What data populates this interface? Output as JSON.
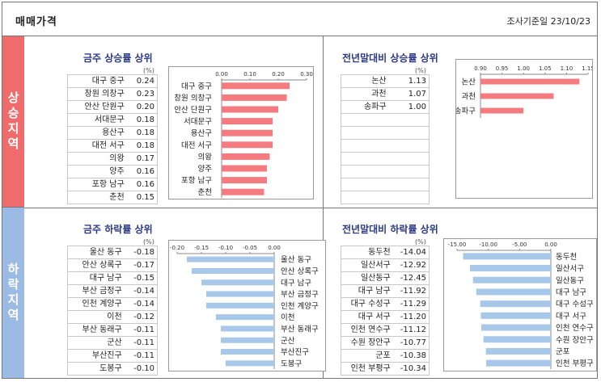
{
  "header": {
    "title": "매매가격",
    "survey_date": "조사기준일 23/10/23"
  },
  "sections": {
    "rise": "상승지역",
    "fall": "하락지역"
  },
  "unit_label": "(%)",
  "chart_data": [
    {
      "type": "bar",
      "title": "금주 상승률 상위",
      "categories": [
        "대구 중구",
        "창원 의창구",
        "안산 단원구",
        "서대문구",
        "용산구",
        "대전 서구",
        "의왕",
        "양주",
        "포항 남구",
        "춘천"
      ],
      "values": [
        0.24,
        0.23,
        0.2,
        0.18,
        0.18,
        0.18,
        0.17,
        0.16,
        0.16,
        0.15
      ],
      "value_labels": [
        "0.24",
        "0.23",
        "0.20",
        "0.18",
        "0.18",
        "0.18",
        "0.17",
        "0.16",
        "0.16",
        "0.15"
      ],
      "xlim": [
        0,
        0.3
      ],
      "ticks": [
        0,
        0.1,
        0.2,
        0.3
      ],
      "tick_labels": [
        "0.00",
        "0.10",
        "0.20",
        "0.30"
      ],
      "color": "#f47c80"
    },
    {
      "type": "bar",
      "title": "전년말대비 상승률 상위",
      "categories": [
        "논산",
        "과천",
        "송파구"
      ],
      "values": [
        1.13,
        1.07,
        1.0
      ],
      "value_labels": [
        "1.13",
        "1.07",
        "1.00"
      ],
      "xlim": [
        0.9,
        1.15
      ],
      "ticks": [
        0.9,
        0.95,
        1.0,
        1.05,
        1.1,
        1.15
      ],
      "tick_labels": [
        "0.90",
        "0.95",
        "1.00",
        "1.05",
        "1.10",
        "1.15"
      ],
      "color": "#f47c80"
    },
    {
      "type": "bar",
      "title": "금주 하락률 상위",
      "categories": [
        "울산 동구",
        "안산 상록구",
        "대구 남구",
        "부산 금정구",
        "인천 계양구",
        "이천",
        "부산 동래구",
        "군산",
        "부산진구",
        "도봉구"
      ],
      "values": [
        -0.18,
        -0.17,
        -0.15,
        -0.14,
        -0.14,
        -0.12,
        -0.11,
        -0.11,
        -0.11,
        -0.1
      ],
      "value_labels": [
        "-0.18",
        "-0.17",
        "-0.15",
        "-0.14",
        "-0.14",
        "-0.12",
        "-0.11",
        "-0.11",
        "-0.11",
        "-0.10"
      ],
      "xlim": [
        -0.2,
        0
      ],
      "ticks": [
        -0.2,
        -0.15,
        -0.1,
        -0.05,
        0
      ],
      "tick_labels": [
        "-0.20",
        "-0.15",
        "-0.10",
        "-0.05",
        "0.00"
      ],
      "color": "#a8c8ea"
    },
    {
      "type": "bar",
      "title": "전년말대비 하락률 상위",
      "categories": [
        "동두천",
        "일산서구",
        "일산동구",
        "대구 남구",
        "대구 수성구",
        "대구 서구",
        "인천 연수구",
        "수원 장안구",
        "군포",
        "인천 부평구"
      ],
      "values": [
        -14.04,
        -12.92,
        -12.45,
        -11.92,
        -11.29,
        -11.2,
        -11.12,
        -10.77,
        -10.38,
        -10.34
      ],
      "value_labels": [
        "-14.04",
        "-12.92",
        "-12.45",
        "-11.92",
        "-11.29",
        "-11.20",
        "-11.12",
        "-10.77",
        "-10.38",
        "-10.34"
      ],
      "xlim": [
        -15,
        0
      ],
      "ticks": [
        -15,
        -10,
        -5,
        0
      ],
      "tick_labels": [
        "-15.00",
        "-10.00",
        "-5.00",
        "0.00"
      ],
      "color": "#a8c8ea"
    }
  ]
}
